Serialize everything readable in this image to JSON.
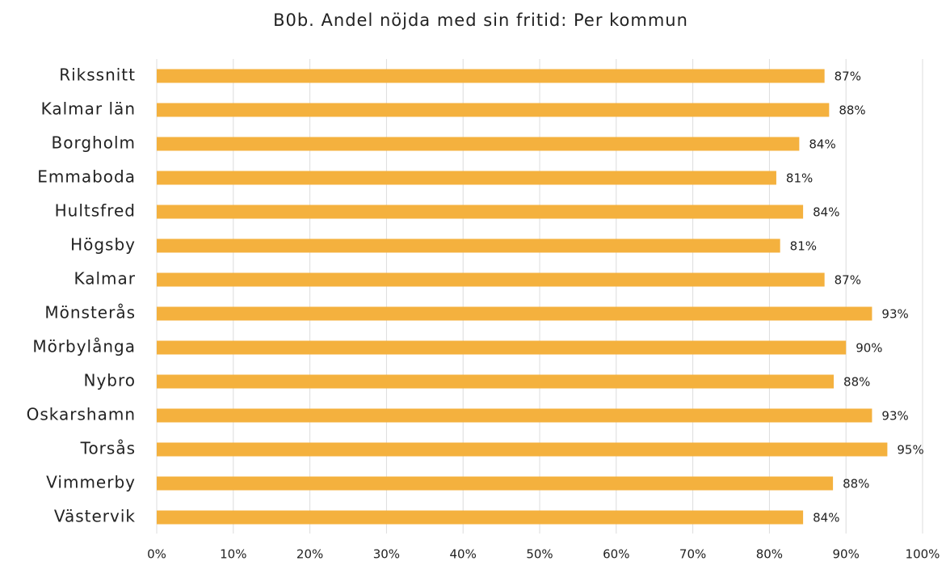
{
  "chart_data": {
    "type": "bar",
    "orientation": "horizontal",
    "title": "B0b. Andel nöjda med sin fritid: Per kommun",
    "categories": [
      "Rikssnitt",
      "Kalmar län",
      "Borgholm",
      "Emmaboda",
      "Hultsfred",
      "Högsby",
      "Kalmar",
      "Mönsterås",
      "Mörbylånga",
      "Nybro",
      "Oskarshamn",
      "Torsås",
      "Vimmerby",
      "Västervik"
    ],
    "values": [
      87.2,
      87.8,
      83.9,
      80.9,
      84.4,
      81.4,
      87.2,
      93.4,
      90.0,
      88.4,
      93.4,
      95.4,
      88.3,
      84.4
    ],
    "value_labels": [
      "87%",
      "88%",
      "84%",
      "81%",
      "84%",
      "81%",
      "87%",
      "93%",
      "90%",
      "88%",
      "93%",
      "95%",
      "88%",
      "84%"
    ],
    "color": "#f4b13e",
    "xlim": [
      0,
      100
    ],
    "xticks": [
      {
        "value": 0,
        "label": "0%"
      },
      {
        "value": 10,
        "label": "10%"
      },
      {
        "value": 20,
        "label": "20%"
      },
      {
        "value": 30,
        "label": "30%"
      },
      {
        "value": 40,
        "label": "40%"
      },
      {
        "value": 50,
        "label": "50%"
      },
      {
        "value": 60,
        "label": "60%"
      },
      {
        "value": 70,
        "label": "70%"
      },
      {
        "value": 80,
        "label": "80%"
      },
      {
        "value": 90,
        "label": "90%"
      },
      {
        "value": 100,
        "label": "100%"
      }
    ],
    "grid": true
  }
}
